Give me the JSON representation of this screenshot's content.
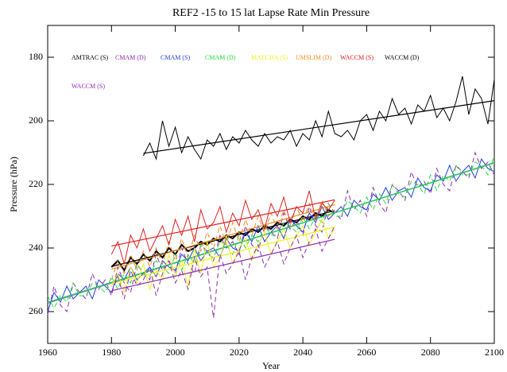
{
  "chart_data": {
    "type": "line",
    "title": "REF2 -15 to 15 lat Lapse Rate Min Pressure",
    "x_label": "Year",
    "y_label": "Pressure (hPa)",
    "xlim": [
      1960,
      2100
    ],
    "xticks": [
      1960,
      1980,
      2000,
      2020,
      2040,
      2060,
      2080,
      2100
    ],
    "ylim": [
      270,
      170
    ],
    "yticks": [
      180,
      200,
      220,
      240,
      260
    ],
    "trend_lines": true,
    "series": [
      {
        "name": "AMTRAC (S)",
        "color": "#000000",
        "dashed": false,
        "width": 2,
        "x": [
          1980,
          1982,
          1984,
          1986,
          1988,
          1990,
          1992,
          1994,
          1996,
          1998,
          2000,
          2002,
          2004,
          2006,
          2008,
          2010,
          2012,
          2014,
          2016,
          2018,
          2020,
          2022,
          2024,
          2026,
          2028,
          2030,
          2032,
          2034,
          2036,
          2038,
          2040,
          2042,
          2044,
          2046,
          2048,
          2050
        ],
        "values": [
          246,
          244,
          247,
          243,
          245,
          242,
          244,
          241,
          243,
          240,
          242,
          239,
          241,
          240,
          238,
          239,
          237,
          238,
          236,
          237,
          235,
          236,
          234,
          235,
          233,
          234,
          232,
          233,
          231,
          232,
          230,
          231,
          229,
          230,
          228,
          229
        ]
      },
      {
        "name": "CMAM (D)",
        "color": "#8e2bb0",
        "dashed": true,
        "width": 1,
        "x": [
          1960,
          1962,
          1964,
          1966,
          1968,
          1970,
          1972,
          1974,
          1976,
          1978,
          1980,
          1982,
          1984,
          1986,
          1988,
          1990,
          1992,
          1994,
          1996,
          1998,
          2000,
          2002,
          2004,
          2006,
          2008,
          2010,
          2012,
          2014,
          2016,
          2018,
          2020,
          2022,
          2024,
          2026,
          2028,
          2030,
          2032,
          2034,
          2036,
          2038,
          2040,
          2042,
          2044,
          2046,
          2048,
          2050,
          2052,
          2054,
          2056,
          2058,
          2060,
          2062,
          2064,
          2066,
          2068,
          2070,
          2072,
          2074,
          2076,
          2078,
          2080,
          2082,
          2084,
          2086,
          2088,
          2090,
          2092,
          2094,
          2096,
          2098,
          2100
        ],
        "values": [
          261,
          252,
          258,
          260,
          251,
          254,
          256,
          248,
          253,
          250,
          255,
          246,
          251,
          254,
          245,
          248,
          250,
          242,
          247,
          244,
          248,
          240,
          245,
          248,
          239,
          241,
          244,
          236,
          240,
          238,
          242,
          233,
          239,
          241,
          233,
          235,
          237,
          229,
          234,
          231,
          236,
          227,
          233,
          235,
          226,
          229,
          231,
          222,
          228,
          225,
          230,
          221,
          226,
          229,
          220,
          222,
          225,
          216,
          221,
          219,
          223,
          215,
          220,
          222,
          214,
          216,
          218,
          210,
          215,
          213,
          217
        ]
      },
      {
        "name": "CMAM (S)",
        "color": "#1f3fe0",
        "dashed": false,
        "width": 1,
        "x": [
          1960,
          1962,
          1964,
          1966,
          1968,
          1970,
          1972,
          1974,
          1976,
          1978,
          1980,
          1982,
          1984,
          1986,
          1988,
          1990,
          1992,
          1994,
          1996,
          1998,
          2000,
          2002,
          2004,
          2006,
          2008,
          2010,
          2012,
          2014,
          2016,
          2018,
          2020,
          2022,
          2024,
          2026,
          2028,
          2030,
          2032,
          2034,
          2036,
          2038,
          2040,
          2042,
          2044,
          2046,
          2048,
          2050,
          2052,
          2054,
          2056,
          2058,
          2060,
          2062,
          2064,
          2066,
          2068,
          2070,
          2072,
          2074,
          2076,
          2078,
          2080,
          2082,
          2084,
          2086,
          2088,
          2090,
          2092,
          2094,
          2096,
          2098,
          2100
        ],
        "values": [
          260,
          254,
          257,
          252,
          256,
          254,
          252,
          256,
          250,
          252,
          254,
          248,
          250,
          246,
          250,
          248,
          246,
          249,
          244,
          246,
          247,
          242,
          244,
          240,
          244,
          241,
          240,
          243,
          237,
          240,
          241,
          235,
          238,
          233,
          238,
          235,
          233,
          237,
          231,
          233,
          235,
          229,
          232,
          227,
          231,
          229,
          227,
          230,
          225,
          227,
          228,
          223,
          225,
          221,
          225,
          222,
          221,
          224,
          218,
          221,
          222,
          217,
          219,
          214,
          219,
          216,
          214,
          218,
          212,
          215,
          216
        ]
      },
      {
        "name": "CMAM (D)",
        "color": "#22e040",
        "dashed": true,
        "width": 1,
        "x": [
          1960,
          1962,
          1964,
          1966,
          1968,
          1970,
          1972,
          1974,
          1976,
          1978,
          1980,
          1982,
          1984,
          1986,
          1988,
          1990,
          1992,
          1994,
          1996,
          1998,
          2000,
          2002,
          2004,
          2006,
          2008,
          2010,
          2012,
          2014,
          2016,
          2018,
          2020,
          2022,
          2024,
          2026,
          2028,
          2030,
          2032,
          2034,
          2036,
          2038,
          2040,
          2042,
          2044,
          2046,
          2048,
          2050,
          2052,
          2054,
          2056,
          2058,
          2060,
          2062,
          2064,
          2066,
          2068,
          2070,
          2072,
          2074,
          2076,
          2078,
          2080,
          2082,
          2084,
          2086,
          2088,
          2090,
          2092,
          2094,
          2096,
          2098,
          2100
        ],
        "values": [
          255,
          259,
          255,
          257,
          251,
          255,
          255,
          251,
          252,
          254,
          249,
          253,
          248,
          251,
          245,
          248,
          249,
          244,
          246,
          248,
          242,
          247,
          242,
          245,
          239,
          242,
          243,
          238,
          239,
          242,
          236,
          240,
          236,
          238,
          233,
          236,
          236,
          232,
          233,
          235,
          230,
          234,
          230,
          232,
          226,
          230,
          230,
          225,
          227,
          229,
          224,
          228,
          223,
          226,
          220,
          223,
          224,
          219,
          220,
          223,
          217,
          222,
          217,
          219,
          214,
          217,
          217,
          213,
          214,
          217,
          211
        ]
      },
      {
        "name": "MAECHA (S)",
        "color": "#f0f020",
        "dashed": false,
        "width": 1,
        "x": [
          1980,
          1982,
          1984,
          1986,
          1988,
          1990,
          1992,
          1994,
          1996,
          1998,
          2000,
          2002,
          2004,
          2006,
          2008,
          2010,
          2012,
          2014,
          2016,
          2018,
          2020,
          2022,
          2024,
          2026,
          2028,
          2030,
          2032,
          2034,
          2036,
          2038,
          2040,
          2042,
          2044,
          2046,
          2048,
          2050
        ],
        "values": [
          252,
          248,
          254,
          246,
          251,
          245,
          253,
          247,
          250,
          242,
          249,
          244,
          252,
          240,
          248,
          238,
          246,
          243,
          236,
          245,
          240,
          237,
          244,
          239,
          235,
          242,
          238,
          234,
          240,
          236,
          233,
          239,
          235,
          231,
          237,
          234
        ]
      },
      {
        "name": "UMSLIM (D)",
        "color": "#f08a20",
        "dashed": true,
        "width": 1,
        "x": [
          1980,
          1982,
          1984,
          1986,
          1988,
          1990,
          1992,
          1994,
          1996,
          1998,
          2000,
          2002,
          2004,
          2006,
          2008,
          2010,
          2012,
          2014,
          2016,
          2018,
          2020,
          2022,
          2024,
          2026,
          2028,
          2030,
          2032,
          2034,
          2036,
          2038,
          2040,
          2042,
          2044,
          2046,
          2048,
          2050
        ],
        "values": [
          250,
          244,
          248,
          242,
          247,
          241,
          246,
          240,
          245,
          238,
          244,
          237,
          243,
          236,
          241,
          235,
          240,
          233,
          239,
          232,
          238,
          231,
          236,
          230,
          235,
          229,
          234,
          228,
          233,
          227,
          232,
          226,
          231,
          225,
          230,
          228
        ]
      },
      {
        "name": "WACCM (S)",
        "color": "#e02020",
        "dashed": false,
        "width": 1,
        "x": [
          1980,
          1982,
          1984,
          1986,
          1988,
          1990,
          1992,
          1994,
          1996,
          1998,
          2000,
          2002,
          2004,
          2006,
          2008,
          2010,
          2012,
          2014,
          2016,
          2018,
          2020,
          2022,
          2024,
          2026,
          2028,
          2030,
          2032,
          2034,
          2036,
          2038,
          2040,
          2042,
          2044,
          2046,
          2048,
          2050
        ],
        "values": [
          242,
          238,
          245,
          236,
          240,
          234,
          241,
          237,
          233,
          239,
          231,
          236,
          230,
          238,
          228,
          234,
          232,
          227,
          235,
          229,
          233,
          225,
          231,
          228,
          234,
          226,
          230,
          224,
          232,
          227,
          229,
          222,
          231,
          226,
          228,
          225
        ]
      },
      {
        "name": "WACCM (D)",
        "color": "#000000",
        "dashed": false,
        "width": 1,
        "x": [
          1990,
          1992,
          1994,
          1996,
          1998,
          2000,
          2002,
          2004,
          2006,
          2008,
          2010,
          2012,
          2014,
          2016,
          2018,
          2020,
          2022,
          2024,
          2026,
          2028,
          2030,
          2032,
          2034,
          2036,
          2038,
          2040,
          2042,
          2044,
          2046,
          2048,
          2050,
          2052,
          2054,
          2056,
          2058,
          2060,
          2062,
          2064,
          2066,
          2068,
          2070,
          2072,
          2074,
          2076,
          2078,
          2080,
          2082,
          2084,
          2086,
          2088,
          2090,
          2092,
          2094,
          2096,
          2098,
          2100
        ],
        "values": [
          211,
          207,
          212,
          200,
          208,
          202,
          210,
          205,
          209,
          212,
          206,
          208,
          204,
          209,
          205,
          207,
          203,
          206,
          208,
          204,
          207,
          205,
          206,
          203,
          208,
          204,
          206,
          200,
          205,
          197,
          204,
          205,
          203,
          206,
          200,
          198,
          203,
          197,
          200,
          193,
          198,
          196,
          201,
          195,
          197,
          192,
          199,
          196,
          200,
          194,
          186,
          198,
          190,
          193,
          201,
          187
        ]
      },
      {
        "name": "WACCM (S)",
        "color": "#8e2bb0",
        "dashed": true,
        "width": 1,
        "x": [
          1980,
          1982,
          1984,
          1986,
          1988,
          1990,
          1992,
          1994,
          1996,
          1998,
          2000,
          2002,
          2004,
          2006,
          2008,
          2010,
          2012,
          2014,
          2016,
          2018,
          2020,
          2022,
          2024,
          2026,
          2028,
          2030,
          2032,
          2034,
          2036,
          2038,
          2040,
          2042,
          2044,
          2046,
          2048,
          2050
        ],
        "values": [
          254,
          249,
          256,
          247,
          252,
          250,
          246,
          255,
          248,
          244,
          251,
          247,
          253,
          243,
          249,
          246,
          262,
          242,
          248,
          245,
          241,
          250,
          243,
          239,
          246,
          242,
          238,
          245,
          240,
          236,
          243,
          238,
          234,
          241,
          237,
          233
        ]
      }
    ]
  }
}
